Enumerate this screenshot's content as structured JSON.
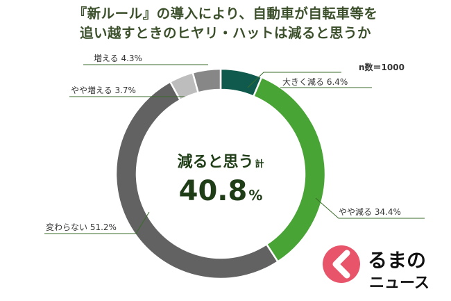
{
  "title_lines": [
    "『新ルール』の導入により、自動車が自転車等を",
    "追い越すときのヒヤリ・ハットは減ると思うか"
  ],
  "sample_size": "n数＝1000",
  "center": {
    "main": "減ると思う",
    "suffix": "計",
    "value": "40.8",
    "unit": "%"
  },
  "chart_data": {
    "type": "pie",
    "style": "donut",
    "start": "top",
    "direction": "clockwise",
    "slices": [
      {
        "name": "大きく減る",
        "value": 6.4,
        "label": "大きく減る 6.4%",
        "color": "#0f5a4c"
      },
      {
        "name": "やや減る",
        "value": 34.4,
        "label": "やや減る 34.4%",
        "color": "#48a435"
      },
      {
        "name": "変わらない",
        "value": 51.2,
        "label": "変わらない 51.2%",
        "color": "#626262"
      },
      {
        "name": "やや増える",
        "value": 3.7,
        "label": "やや増える 3.7%",
        "color": "#bdbdbd"
      },
      {
        "name": "増える",
        "value": 4.3,
        "label": "増える 4.3%",
        "color": "#878787"
      }
    ],
    "total_label": "減ると思う計 40.8%"
  },
  "logo": {
    "line1": "るまの",
    "line2": "ニュース",
    "accent_color": "#e8546a"
  }
}
